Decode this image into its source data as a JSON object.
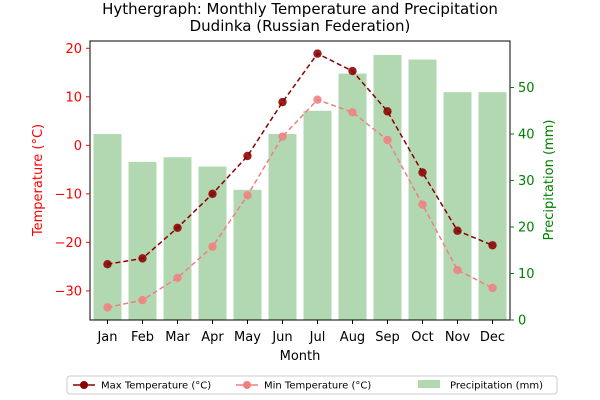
{
  "chart_data": {
    "type": "bar+line",
    "title": "Hythergraph: Monthly Temperature and Precipitation",
    "subtitle": "Dudinka (Russian Federation)",
    "xlabel": "Month",
    "ylabel_left": "Temperature (°C)",
    "ylabel_right": "Precipitation (mm)",
    "categories": [
      "Jan",
      "Feb",
      "Mar",
      "Apr",
      "May",
      "Jun",
      "Jul",
      "Aug",
      "Sep",
      "Oct",
      "Nov",
      "Dec"
    ],
    "ylim_left": [
      -36,
      21.5
    ],
    "ylim_right": [
      0,
      60
    ],
    "yticks_left": [
      -30,
      -20,
      -10,
      0,
      10,
      20
    ],
    "yticks_right": [
      0,
      10,
      20,
      30,
      40,
      50
    ],
    "grid": false,
    "legend_position": "bottom",
    "series": [
      {
        "name": "Max Temperature (°C)",
        "kind": "line",
        "axis": "left",
        "color": "#8b0000",
        "style": "dashed",
        "values": [
          -24.5,
          -23.3,
          -17.0,
          -10.0,
          -2.2,
          8.9,
          18.9,
          15.3,
          7.0,
          -5.6,
          -17.6,
          -20.6
        ]
      },
      {
        "name": "Min Temperature (°C)",
        "kind": "line",
        "axis": "left",
        "color": "#f08080",
        "style": "dashed",
        "values": [
          -33.4,
          -31.9,
          -27.3,
          -20.9,
          -10.3,
          1.8,
          9.4,
          6.8,
          1.1,
          -12.2,
          -25.7,
          -29.4
        ]
      },
      {
        "name": "Precipitation (mm)",
        "kind": "bar",
        "axis": "right",
        "color": "#b2d8b2",
        "values": [
          40,
          34,
          35,
          33,
          28,
          40,
          45,
          53,
          57,
          56,
          49,
          49
        ]
      }
    ],
    "colors": {
      "left_axis": "#ff0000",
      "right_axis": "#008000",
      "axis": "#000000"
    }
  }
}
